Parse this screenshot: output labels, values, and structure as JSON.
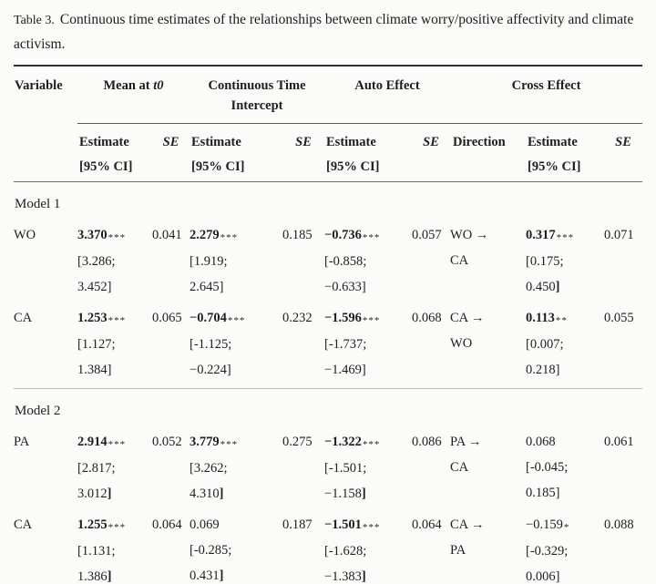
{
  "caption": {
    "label": "Table 3.",
    "text": "Continuous time estimates of the relationships between climate worry/positive affectivity and climate activism."
  },
  "colors": {
    "background": "#fbfbf9",
    "text": "#1e1e1e",
    "rule_dark": "#2f2f2f",
    "rule_medium": "#6e6e6e",
    "rule_light": "#bcbcb8"
  },
  "table": {
    "group_headers": [
      {
        "label": "Variable"
      },
      {
        "label": "Mean at ",
        "italic": "t0"
      },
      {
        "label": "Continuous Time Intercept"
      },
      {
        "label": "Auto Effect"
      },
      {
        "label": "Cross Effect"
      }
    ],
    "sub_header": {
      "estimate": "Estimate",
      "ci": "[95% CI]",
      "se": "SE",
      "direction": "Direction"
    },
    "sections": [
      {
        "label": "Model 1",
        "divider": false,
        "rows": [
          {
            "variable": "WO",
            "mean": {
              "est": "3.370",
              "stars": "***",
              "bold": true,
              "ci1": "[3.286;",
              "ci2": "3.452]",
              "bold_end": false,
              "se": "0.041"
            },
            "intercept": {
              "est": "2.279",
              "stars": "***",
              "bold": true,
              "ci1": "[1.919;",
              "ci2": "2.645]",
              "bold_end": false,
              "se": "0.185"
            },
            "auto": {
              "est": "−0.736",
              "stars": "***",
              "bold": true,
              "ci1": "[-0.858;",
              "ci2": "−0.633]",
              "bold_end": false,
              "se": "0.057"
            },
            "direction": {
              "from": "WO →",
              "to": "CA"
            },
            "cross": {
              "est": "0.317",
              "stars": "***",
              "bold": true,
              "ci1": "[0.175;",
              "ci2": "0.450]",
              "bold_end": true,
              "se": "0.071"
            }
          },
          {
            "variable": "CA",
            "mean": {
              "est": "1.253",
              "stars": "***",
              "bold": true,
              "ci1": "[1.127;",
              "ci2": "1.384]",
              "bold_end": false,
              "se": "0.065"
            },
            "intercept": {
              "est": "−0.704",
              "stars": "***",
              "bold": true,
              "ci1": "[-1.125;",
              "ci2": "−0.224]",
              "bold_end": false,
              "se": "0.232"
            },
            "auto": {
              "est": "−1.596",
              "stars": "***",
              "bold": true,
              "ci1": "[-1.737;",
              "ci2": "−1.469]",
              "bold_end": false,
              "se": "0.068"
            },
            "direction": {
              "from": "CA →",
              "to": "WO"
            },
            "cross": {
              "est": "0.113",
              "stars": "**",
              "bold": true,
              "ci1": "[0.007;",
              "ci2": "0.218]",
              "bold_end": false,
              "se": "0.055"
            }
          }
        ]
      },
      {
        "label": "Model 2",
        "divider": true,
        "rows": [
          {
            "variable": "PA",
            "mean": {
              "est": "2.914",
              "stars": "***",
              "bold": true,
              "ci1": "[2.817;",
              "ci2": "3.012]",
              "bold_end": true,
              "se": "0.052"
            },
            "intercept": {
              "est": "3.779",
              "stars": "***",
              "bold": true,
              "ci1": "[3.262;",
              "ci2": "4.310]",
              "bold_end": true,
              "se": "0.275"
            },
            "auto": {
              "est": "−1.322",
              "stars": "***",
              "bold": true,
              "ci1": "[-1.501;",
              "ci2": "−1.158]",
              "bold_end": true,
              "se": "0.086"
            },
            "direction": {
              "from": "PA →",
              "to": "CA"
            },
            "cross": {
              "est": "0.068",
              "stars": "",
              "bold": false,
              "ci1": "[-0.045;",
              "ci2": "0.185]",
              "bold_end": false,
              "se": "0.061"
            }
          },
          {
            "variable": "CA",
            "mean": {
              "est": "1.255",
              "stars": "***",
              "bold": true,
              "ci1": "[1.131;",
              "ci2": "1.386]",
              "bold_end": true,
              "se": "0.064"
            },
            "intercept": {
              "est": "0.069",
              "stars": "",
              "bold": false,
              "ci1": "[-0.285;",
              "ci2": "0.431]",
              "bold_end": true,
              "se": "0.187"
            },
            "auto": {
              "est": "−1.501",
              "stars": "***",
              "bold": true,
              "ci1": "[-1.628;",
              "ci2": "−1.383]",
              "bold_end": true,
              "se": "0.064"
            },
            "direction": {
              "from": "CA →",
              "to": "PA"
            },
            "cross": {
              "est": "−0.159",
              "stars": "*",
              "bold": false,
              "ci1": "[-0.329;",
              "ci2": "0.006]",
              "bold_end": false,
              "se": "0.088"
            }
          }
        ]
      }
    ]
  }
}
